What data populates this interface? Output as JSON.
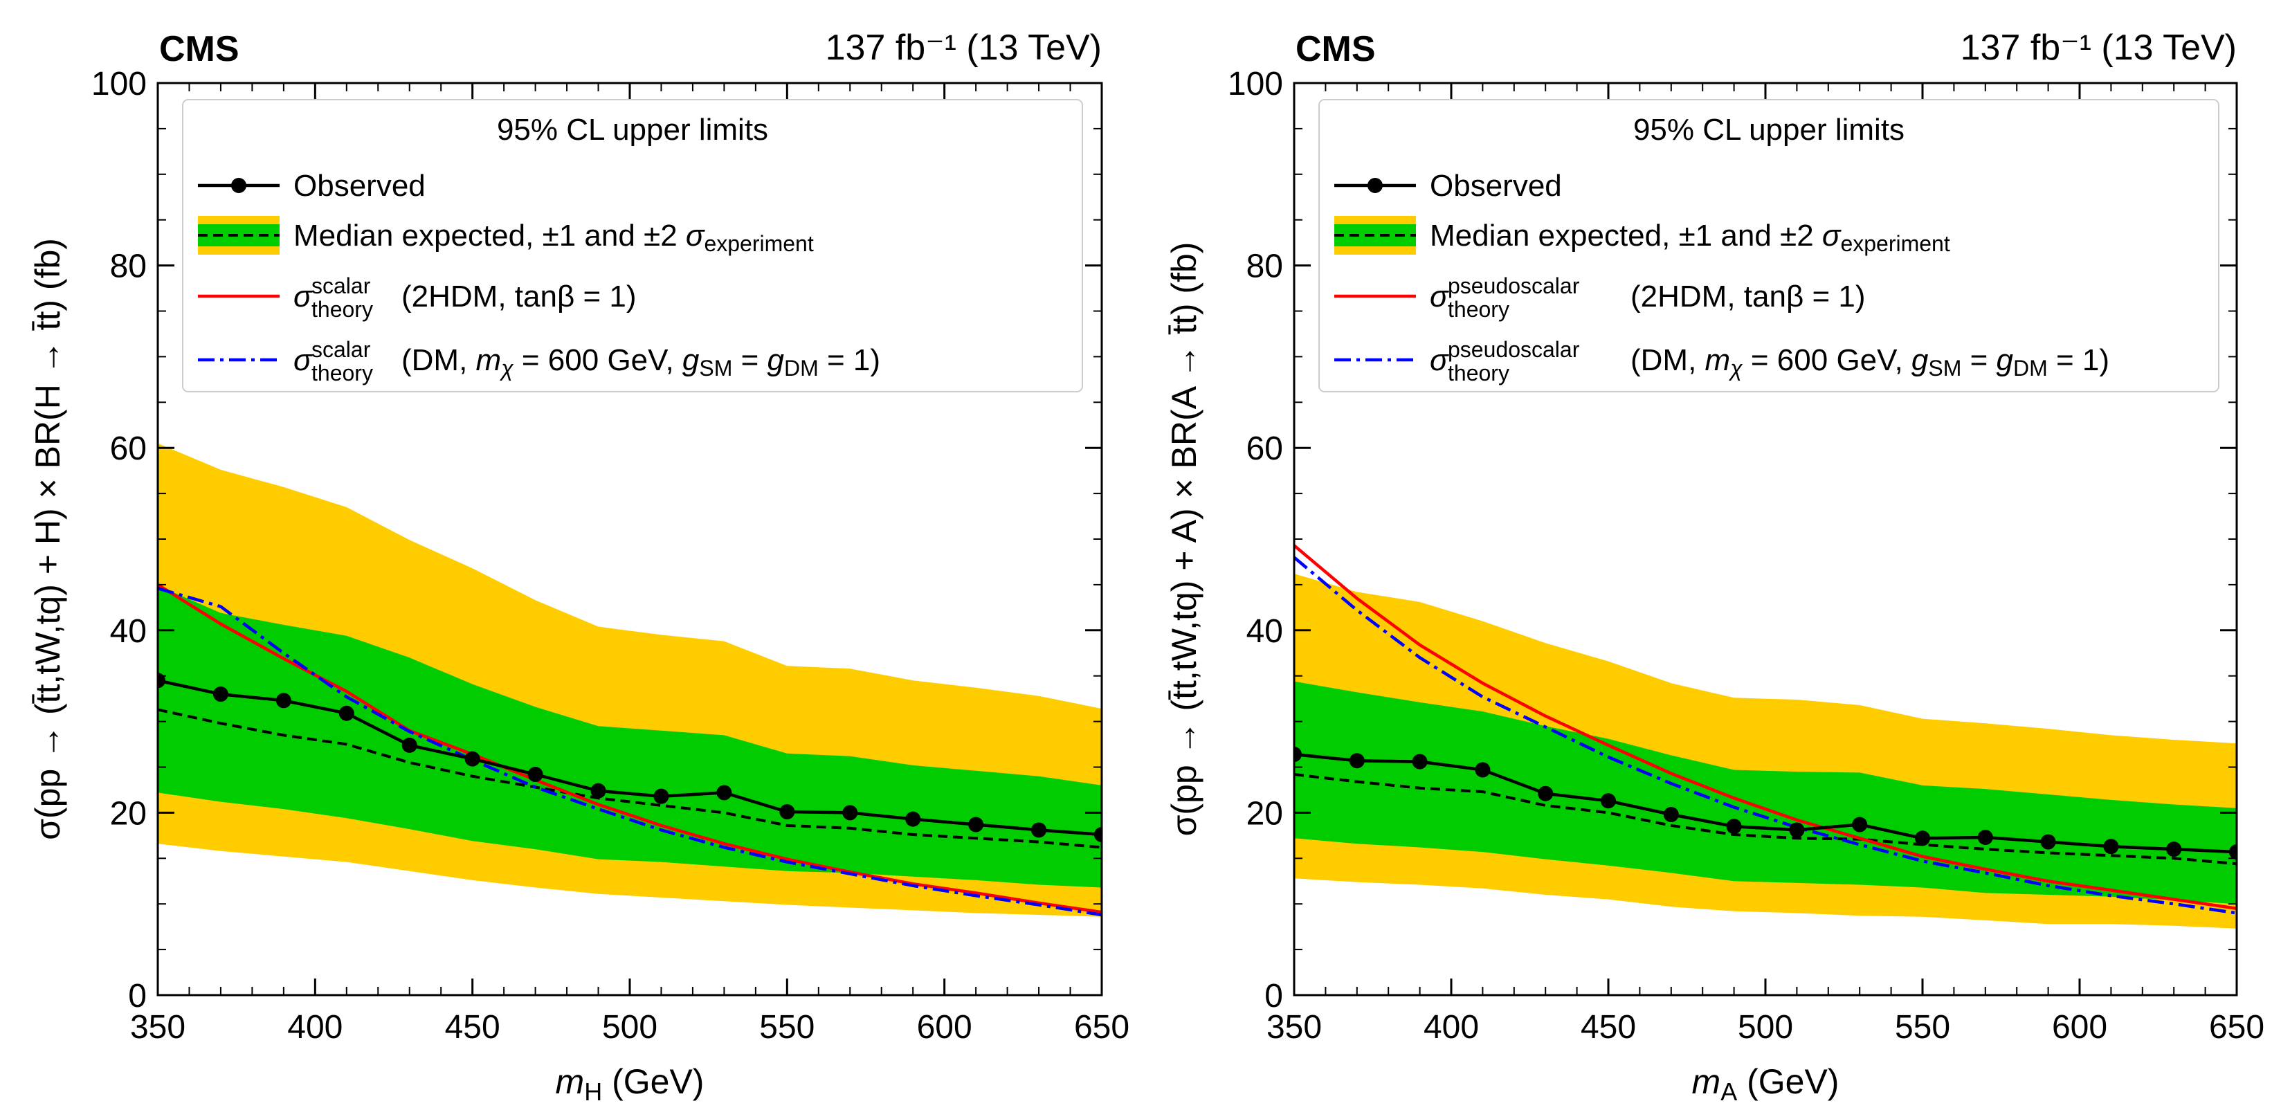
{
  "chart_data": [
    {
      "type": "line",
      "panel": "left",
      "experiment": "CMS",
      "luminosity_label": "137 fb⁻¹ (13 TeV)",
      "xlabel_var": "m",
      "xlabel_sub": "H",
      "xlabel_unit": " (GeV)",
      "ylabel": "σ(pp →  (t̄t,tW,tq) + H) × BR(H → t̄t) (fb)",
      "xlim": [
        350,
        650
      ],
      "ylim": [
        0,
        100
      ],
      "xticks": [
        350,
        400,
        450,
        500,
        550,
        600,
        650
      ],
      "yticks": [
        0,
        20,
        40,
        60,
        80,
        100
      ],
      "legend": {
        "title": "95% CL upper limits",
        "observed": "Observed",
        "expected": "Median expected, ±1 and ±2 ",
        "sigma": "σ",
        "expected_sub": "experiment",
        "theory_sup": "scalar",
        "theory_sub": "theory",
        "twohdm": "(2HDM, tanβ = 1)",
        "dm_text": "(DM, ",
        "dm_mchi": "m",
        "dm_mchi_sub": "χ",
        "dm_mass": " = 600 GeV, ",
        "dm_g": "g",
        "dm_gsm_sub": "SM",
        "dm_eq": " = ",
        "dm_gdm_sub": "DM",
        "dm_end": " = 1)"
      },
      "series": {
        "x": [
          350,
          370,
          390,
          410,
          430,
          450,
          470,
          490,
          510,
          530,
          550,
          570,
          590,
          610,
          630,
          650
        ],
        "observed": [
          34.5,
          33.0,
          32.3,
          30.9,
          27.4,
          25.9,
          24.2,
          22.4,
          21.8,
          22.2,
          20.1,
          20.0,
          19.3,
          18.7,
          18.1,
          17.6
        ],
        "expected": [
          31.3,
          29.8,
          28.5,
          27.5,
          25.5,
          24.0,
          22.8,
          21.6,
          20.8,
          20.0,
          18.6,
          18.3,
          17.6,
          17.2,
          16.8,
          16.2
        ],
        "minus1": [
          22.2,
          21.2,
          20.4,
          19.4,
          18.2,
          16.9,
          16.0,
          14.9,
          14.6,
          14.1,
          13.6,
          13.4,
          13.0,
          12.6,
          12.1,
          11.8
        ],
        "plus1": [
          44.9,
          41.9,
          40.6,
          39.4,
          37.0,
          34.1,
          31.6,
          29.5,
          29.0,
          28.5,
          26.5,
          26.2,
          25.2,
          24.6,
          24.0,
          23.0
        ],
        "minus2": [
          16.6,
          15.8,
          15.2,
          14.6,
          13.6,
          12.6,
          11.8,
          11.1,
          10.7,
          10.3,
          9.9,
          9.6,
          9.3,
          9.0,
          8.8,
          8.6
        ],
        "plus2": [
          60.5,
          57.6,
          55.7,
          53.5,
          49.9,
          46.8,
          43.3,
          40.4,
          39.5,
          38.8,
          36.1,
          35.8,
          34.5,
          33.7,
          32.8,
          31.4
        ],
        "theory_2hdm": [
          45.0,
          40.7,
          36.9,
          33.3,
          29.0,
          26.4,
          23.6,
          20.9,
          18.6,
          16.6,
          14.9,
          13.5,
          12.2,
          11.2,
          10.1,
          9.1
        ],
        "theory_dm": [
          44.6,
          42.6,
          37.5,
          32.7,
          28.9,
          25.8,
          22.8,
          20.4,
          18.1,
          16.2,
          14.6,
          13.3,
          12.0,
          10.9,
          9.9,
          8.8
        ]
      }
    },
    {
      "type": "line",
      "panel": "right",
      "experiment": "CMS",
      "luminosity_label": "137 fb⁻¹ (13 TeV)",
      "xlabel_var": "m",
      "xlabel_sub": "A",
      "xlabel_unit": " (GeV)",
      "ylabel": "σ(pp →  (t̄t,tW,tq) + A) × BR(A → t̄t) (fb)",
      "xlim": [
        350,
        650
      ],
      "ylim": [
        0,
        100
      ],
      "xticks": [
        350,
        400,
        450,
        500,
        550,
        600,
        650
      ],
      "yticks": [
        0,
        20,
        40,
        60,
        80,
        100
      ],
      "legend": {
        "title": "95% CL upper limits",
        "observed": "Observed",
        "expected": "Median expected, ±1 and ±2 ",
        "sigma": "σ",
        "expected_sub": "experiment",
        "theory_sup": "pseudoscalar",
        "theory_sub": "theory",
        "twohdm": "(2HDM, tanβ = 1)",
        "dm_text": "(DM, ",
        "dm_mchi": "m",
        "dm_mchi_sub": "χ",
        "dm_mass": " = 600 GeV, ",
        "dm_g": "g",
        "dm_gsm_sub": "SM",
        "dm_eq": " = ",
        "dm_gdm_sub": "DM",
        "dm_end": " = 1)"
      },
      "series": {
        "x": [
          350,
          370,
          390,
          410,
          430,
          450,
          470,
          490,
          510,
          530,
          550,
          570,
          590,
          610,
          630,
          650
        ],
        "observed": [
          26.4,
          25.7,
          25.6,
          24.7,
          22.1,
          21.3,
          19.8,
          18.5,
          18.1,
          18.7,
          17.2,
          17.3,
          16.8,
          16.3,
          16.0,
          15.7
        ],
        "expected": [
          24.2,
          23.4,
          22.7,
          22.3,
          20.8,
          20.0,
          18.6,
          17.6,
          17.2,
          17.1,
          16.5,
          16.0,
          15.6,
          15.3,
          15.0,
          14.4
        ],
        "minus1": [
          17.2,
          16.6,
          16.2,
          15.7,
          14.9,
          14.2,
          13.4,
          12.5,
          12.3,
          12.1,
          11.8,
          11.2,
          11.0,
          10.8,
          10.4,
          10.0
        ],
        "plus1": [
          34.4,
          33.2,
          32.1,
          31.1,
          29.5,
          28.1,
          26.3,
          24.7,
          24.5,
          24.4,
          23.0,
          22.6,
          22.0,
          21.4,
          20.9,
          20.5
        ],
        "minus2": [
          12.8,
          12.4,
          12.1,
          11.7,
          11.0,
          10.5,
          9.7,
          9.2,
          9.0,
          8.7,
          8.6,
          8.2,
          7.8,
          7.8,
          7.6,
          7.3
        ],
        "plus2": [
          46.2,
          44.2,
          43.1,
          41.0,
          38.6,
          36.6,
          34.2,
          32.6,
          32.4,
          31.8,
          30.3,
          29.8,
          29.2,
          28.5,
          28.0,
          27.6
        ],
        "theory_2hdm": [
          49.3,
          43.5,
          38.4,
          34.2,
          30.6,
          27.4,
          24.3,
          21.6,
          19.2,
          17.2,
          15.2,
          13.8,
          12.5,
          11.5,
          10.5,
          9.5
        ],
        "theory_dm": [
          48.0,
          42.2,
          37.0,
          32.7,
          29.4,
          26.1,
          23.2,
          20.6,
          18.4,
          16.5,
          14.7,
          13.4,
          12.0,
          10.9,
          10.0,
          9.0
        ]
      }
    }
  ],
  "colors": {
    "yellow_band": "#FFCC00",
    "green_band": "#00CC00",
    "observed": "#000000",
    "expected": "#000000",
    "theory_2hdm": "#FF0000",
    "theory_dm": "#0000FF"
  }
}
